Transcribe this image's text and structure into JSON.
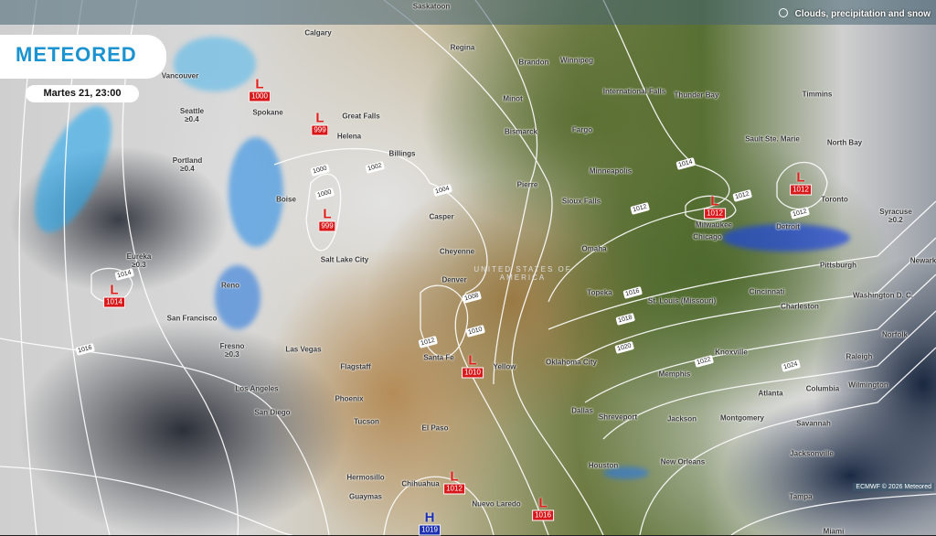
{
  "brand": {
    "logo": "METEORED"
  },
  "header": {
    "datetime": "Martes 21, 23:00",
    "layer": "Clouds, precipitation and snow",
    "layer_icon": "cloud-snow-icon"
  },
  "credit": "ECMWF © 2026 Meteored",
  "colors": {
    "brand": "#1a93d0",
    "low": "#d8171a",
    "high": "#1b2fb0"
  },
  "cities": [
    {
      "name": "Saskatoon"
    },
    {
      "name": "Calgary"
    },
    {
      "name": "Regina"
    },
    {
      "name": "Brandon"
    },
    {
      "name": "Winnipeg"
    },
    {
      "name": "Vancouver"
    },
    {
      "name": "Seattle",
      "amount": "≥0.4"
    },
    {
      "name": "Spokane"
    },
    {
      "name": "Great Falls"
    },
    {
      "name": "Helena"
    },
    {
      "name": "Minot"
    },
    {
      "name": "International Falls"
    },
    {
      "name": "Thunder Bay"
    },
    {
      "name": "Timmins"
    },
    {
      "name": "Billings"
    },
    {
      "name": "Bismarck"
    },
    {
      "name": "Fargo"
    },
    {
      "name": "Sault Ste. Marie"
    },
    {
      "name": "North Bay"
    },
    {
      "name": "Portland",
      "amount": "≥0.4"
    },
    {
      "name": "Minneapolis"
    },
    {
      "name": "Boise"
    },
    {
      "name": "Pierre"
    },
    {
      "name": "Sioux Falls"
    },
    {
      "name": "Toronto"
    },
    {
      "name": "Syracuse",
      "amount": "≥0.2"
    },
    {
      "name": "Casper"
    },
    {
      "name": "Milwaukee"
    },
    {
      "name": "Detroit"
    },
    {
      "name": "Chicago"
    },
    {
      "name": "Eureka",
      "amount": "≥0.3"
    },
    {
      "name": "Cheyenne"
    },
    {
      "name": "Salt Lake City"
    },
    {
      "name": "Omaha"
    },
    {
      "name": "Reno"
    },
    {
      "name": "Denver"
    },
    {
      "name": "Pittsburgh"
    },
    {
      "name": "San Francisco"
    },
    {
      "name": "Topeka"
    },
    {
      "name": "St. Louis (Missouri)"
    },
    {
      "name": "Cincinnati"
    },
    {
      "name": "Washington D. C."
    },
    {
      "name": "Charleston"
    },
    {
      "name": "Fresno",
      "amount": "≥0.3"
    },
    {
      "name": "Las Vegas"
    },
    {
      "name": "Norfolk"
    },
    {
      "name": "Santa Fe"
    },
    {
      "name": "Yellow"
    },
    {
      "name": "Oklahoma City"
    },
    {
      "name": "Memphis"
    },
    {
      "name": "Knoxville"
    },
    {
      "name": "Raleigh"
    },
    {
      "name": "Flagstaff"
    },
    {
      "name": "Los Angeles"
    },
    {
      "name": "Wilmington"
    },
    {
      "name": "Phoenix"
    },
    {
      "name": "Atlanta"
    },
    {
      "name": "Columbia"
    },
    {
      "name": "Dallas"
    },
    {
      "name": "Shreveport"
    },
    {
      "name": "Jackson"
    },
    {
      "name": "Montgomery"
    },
    {
      "name": "Savannah"
    },
    {
      "name": "San Diego"
    },
    {
      "name": "Tucson"
    },
    {
      "name": "El Paso"
    },
    {
      "name": "Jacksonville"
    },
    {
      "name": "Houston"
    },
    {
      "name": "New Orleans"
    },
    {
      "name": "Hermosillo"
    },
    {
      "name": "Chihuahua"
    },
    {
      "name": "Guaymas"
    },
    {
      "name": "Tampa"
    },
    {
      "name": "Nuevo Laredo"
    },
    {
      "name": "Miami"
    },
    {
      "name": "Newark"
    }
  ],
  "country_label": "UNITED STATES OF AMERICA",
  "pressure_centers": [
    {
      "type": "L",
      "value": "1000"
    },
    {
      "type": "L",
      "value": "999"
    },
    {
      "type": "L",
      "value": "999"
    },
    {
      "type": "L",
      "value": "1014"
    },
    {
      "type": "L",
      "value": "1010"
    },
    {
      "type": "L",
      "value": "1012"
    },
    {
      "type": "L",
      "value": "1016"
    },
    {
      "type": "H",
      "value": "1019"
    },
    {
      "type": "L",
      "value": "1012"
    },
    {
      "type": "L",
      "value": "1012"
    }
  ],
  "isobar_labels": [
    "1000",
    "1002",
    "1004",
    "1000",
    "1008",
    "1010",
    "1012",
    "1014",
    "1016",
    "1012",
    "1014",
    "1012",
    "1016",
    "1018",
    "1020",
    "1022",
    "1024",
    "1012"
  ]
}
